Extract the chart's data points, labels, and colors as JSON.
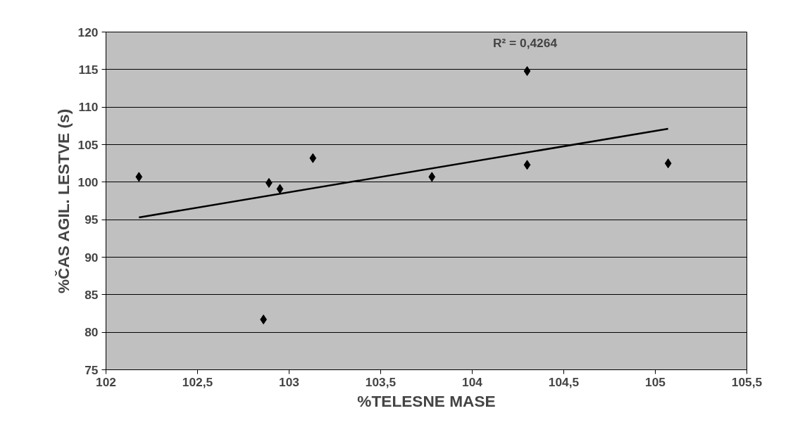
{
  "chart_data": {
    "type": "scatter",
    "xlabel": "%TELESNE MASE",
    "ylabel": "%ČAS AGIL. LESTVE (s)",
    "series": [
      {
        "color": "#000000",
        "marker": "diamond",
        "x": [
          102.18,
          102.86,
          102.89,
          102.95,
          103.13,
          103.78,
          104.3,
          104.3,
          105.07
        ],
        "values": [
          100.7,
          81.7,
          99.9,
          99.1,
          103.2,
          100.7,
          114.8,
          102.3,
          102.5
        ]
      },
      {
        "type": "line",
        "color": "#000000",
        "x": [
          102.18,
          105.07
        ],
        "values": [
          95.3,
          107.1
        ]
      }
    ],
    "annotations": [
      "R² = 0,4264"
    ],
    "xlim": [
      102,
      105.5
    ],
    "ylim": [
      75,
      120
    ],
    "xticks": [
      102,
      {
        "value": 102.5,
        "label": "102,5"
      },
      103,
      {
        "value": 103.5,
        "label": "103,5"
      },
      104,
      {
        "value": 104.5,
        "label": "104,5"
      },
      105,
      {
        "value": 105.5,
        "label": "105,5"
      }
    ],
    "yticks": [
      75,
      80,
      85,
      90,
      95,
      100,
      105,
      110,
      115,
      120
    ],
    "grid": "y"
  }
}
